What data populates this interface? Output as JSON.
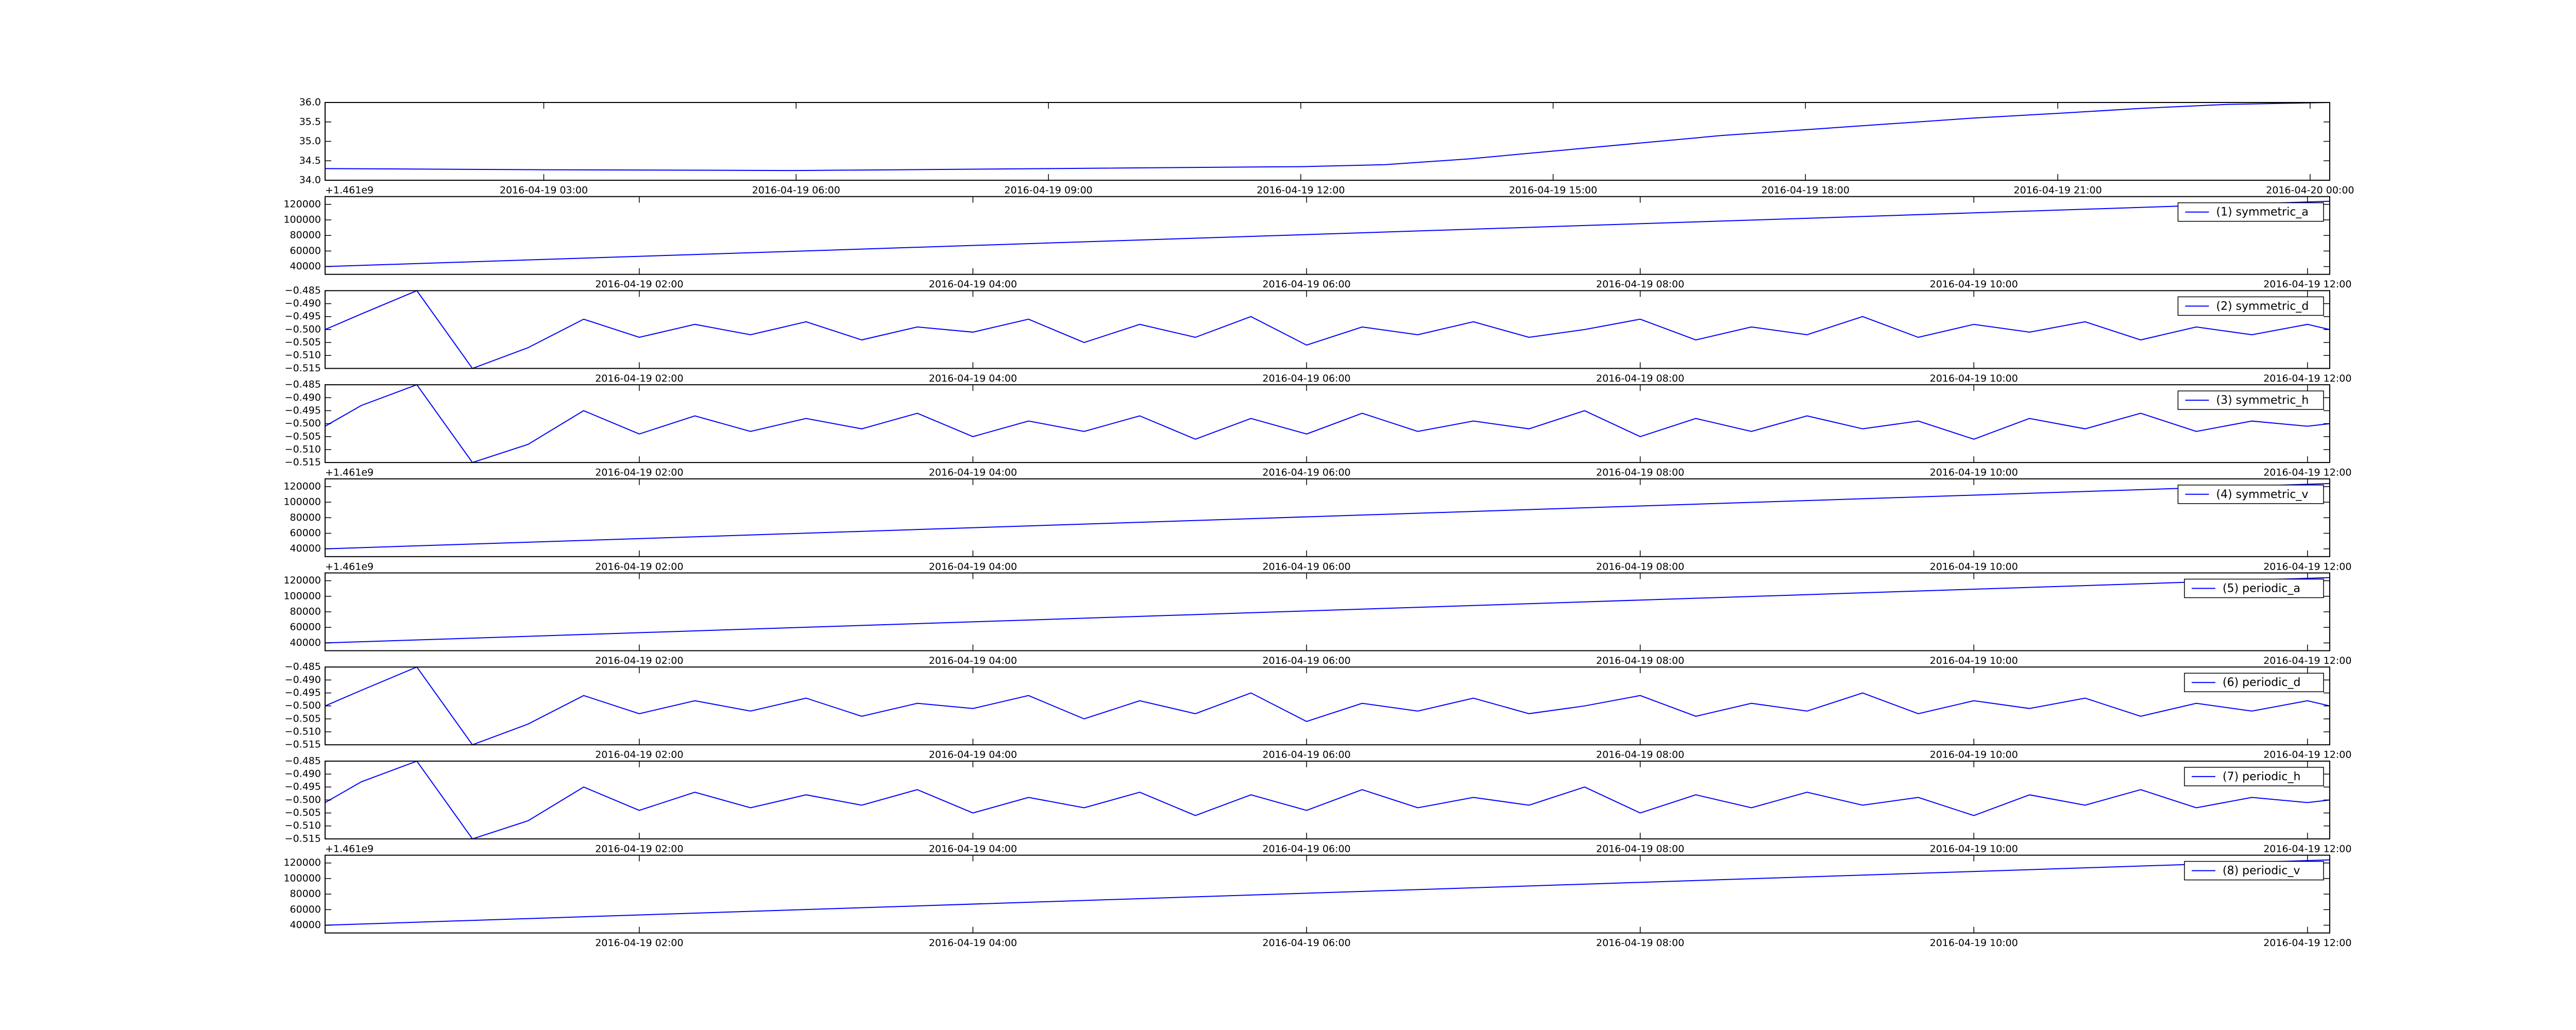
{
  "chart_data": [
    {
      "type": "line",
      "xlim": [
        "2016-04-19 00:24",
        "2016-04-20 00:14"
      ],
      "xticks": [
        "2016-04-19 03:00",
        "2016-04-19 06:00",
        "2016-04-19 09:00",
        "2016-04-19 12:00",
        "2016-04-19 15:00",
        "2016-04-19 18:00",
        "2016-04-19 21:00",
        "2016-04-20 00:00"
      ],
      "ylim": [
        34.0,
        36.0
      ],
      "yticks": [
        {
          "value": 34.0,
          "label": "34.0"
        },
        {
          "value": 34.5,
          "label": "34.5"
        },
        {
          "value": 35.0,
          "label": "35.0"
        },
        {
          "value": 35.5,
          "label": "35.5"
        },
        {
          "value": 36.0,
          "label": "36.0"
        }
      ],
      "offset_text": "+1.461e9",
      "x": [
        "2016-04-19 00:24",
        "2016-04-19 03:00",
        "2016-04-19 06:00",
        "2016-04-19 09:00",
        "2016-04-19 12:00",
        "2016-04-19 13:00",
        "2016-04-19 14:00",
        "2016-04-19 15:00",
        "2016-04-19 16:00",
        "2016-04-19 17:00",
        "2016-04-19 18:00",
        "2016-04-19 19:00",
        "2016-04-19 20:00",
        "2016-04-19 21:00",
        "2016-04-19 22:00",
        "2016-04-19 23:00",
        "2016-04-20 00:14"
      ],
      "series": [
        {
          "color": "#0000ff",
          "values": [
            34.3,
            34.27,
            34.25,
            34.3,
            34.35,
            34.4,
            34.55,
            34.75,
            34.95,
            35.15,
            35.3,
            35.45,
            35.6,
            35.72,
            35.85,
            35.95,
            36.0
          ]
        }
      ]
    },
    {
      "type": "line",
      "xlim": [
        "2016-04-19 00:07",
        "2016-04-19 12:08"
      ],
      "xticks": [
        "2016-04-19 02:00",
        "2016-04-19 04:00",
        "2016-04-19 06:00",
        "2016-04-19 08:00",
        "2016-04-19 10:00",
        "2016-04-19 12:00"
      ],
      "ylim": [
        30000,
        130000
      ],
      "yticks": [
        40000,
        60000,
        80000,
        100000,
        120000
      ],
      "legend": "upper right",
      "x": [
        "2016-04-19 00:07",
        "2016-04-19 12:08"
      ],
      "series": [
        {
          "name": "(1) symmetric_a",
          "color": "#0000ff",
          "values": [
            40000,
            124000
          ]
        }
      ]
    },
    {
      "type": "line",
      "xlim": [
        "2016-04-19 00:07",
        "2016-04-19 12:08"
      ],
      "xticks": [
        "2016-04-19 02:00",
        "2016-04-19 04:00",
        "2016-04-19 06:00",
        "2016-04-19 08:00",
        "2016-04-19 10:00",
        "2016-04-19 12:00"
      ],
      "ylim": [
        -0.515,
        -0.485
      ],
      "yticks": [
        {
          "value": -0.515,
          "label": "−0.515"
        },
        {
          "value": -0.51,
          "label": "−0.510"
        },
        {
          "value": -0.505,
          "label": "−0.505"
        },
        {
          "value": -0.5,
          "label": "−0.500"
        },
        {
          "value": -0.495,
          "label": "−0.495"
        },
        {
          "value": -0.49,
          "label": "−0.490"
        },
        {
          "value": -0.485,
          "label": "−0.485"
        }
      ],
      "legend": "upper right",
      "x": [
        "2016-04-19 00:07",
        "2016-04-19 00:20",
        "2016-04-19 00:40",
        "2016-04-19 01:00",
        "2016-04-19 01:20",
        "2016-04-19 01:40",
        "2016-04-19 02:00",
        "2016-04-19 02:20",
        "2016-04-19 02:40",
        "2016-04-19 03:00",
        "2016-04-19 03:20",
        "2016-04-19 03:40",
        "2016-04-19 04:00",
        "2016-04-19 04:20",
        "2016-04-19 04:40",
        "2016-04-19 05:00",
        "2016-04-19 05:20",
        "2016-04-19 05:40",
        "2016-04-19 06:00",
        "2016-04-19 06:20",
        "2016-04-19 06:40",
        "2016-04-19 07:00",
        "2016-04-19 07:20",
        "2016-04-19 07:40",
        "2016-04-19 08:00",
        "2016-04-19 08:20",
        "2016-04-19 08:40",
        "2016-04-19 09:00",
        "2016-04-19 09:20",
        "2016-04-19 09:40",
        "2016-04-19 10:00",
        "2016-04-19 10:20",
        "2016-04-19 10:40",
        "2016-04-19 11:00",
        "2016-04-19 11:20",
        "2016-04-19 11:40",
        "2016-04-19 12:00",
        "2016-04-19 12:08"
      ],
      "series": [
        {
          "name": "(2) symmetric_d",
          "color": "#0000ff",
          "values": [
            -0.5,
            -0.494,
            -0.485,
            -0.515,
            -0.507,
            -0.496,
            -0.503,
            -0.498,
            -0.502,
            -0.497,
            -0.504,
            -0.499,
            -0.501,
            -0.496,
            -0.505,
            -0.498,
            -0.503,
            -0.495,
            -0.506,
            -0.499,
            -0.502,
            -0.497,
            -0.503,
            -0.5,
            -0.496,
            -0.504,
            -0.499,
            -0.502,
            -0.495,
            -0.503,
            -0.498,
            -0.501,
            -0.497,
            -0.504,
            -0.499,
            -0.502,
            -0.498,
            -0.5
          ]
        }
      ]
    },
    {
      "type": "line",
      "xlim": [
        "2016-04-19 00:07",
        "2016-04-19 12:08"
      ],
      "xticks": [
        "2016-04-19 02:00",
        "2016-04-19 04:00",
        "2016-04-19 06:00",
        "2016-04-19 08:00",
        "2016-04-19 10:00",
        "2016-04-19 12:00"
      ],
      "ylim": [
        -0.515,
        -0.485
      ],
      "yticks": [
        {
          "value": -0.515,
          "label": "−0.515"
        },
        {
          "value": -0.51,
          "label": "−0.510"
        },
        {
          "value": -0.505,
          "label": "−0.505"
        },
        {
          "value": -0.5,
          "label": "−0.500"
        },
        {
          "value": -0.495,
          "label": "−0.495"
        },
        {
          "value": -0.49,
          "label": "−0.490"
        },
        {
          "value": -0.485,
          "label": "−0.485"
        }
      ],
      "legend": "upper right",
      "offset_text": "+1.461e9",
      "x": [
        "2016-04-19 00:07",
        "2016-04-19 00:20",
        "2016-04-19 00:40",
        "2016-04-19 01:00",
        "2016-04-19 01:20",
        "2016-04-19 01:40",
        "2016-04-19 02:00",
        "2016-04-19 02:20",
        "2016-04-19 02:40",
        "2016-04-19 03:00",
        "2016-04-19 03:20",
        "2016-04-19 03:40",
        "2016-04-19 04:00",
        "2016-04-19 04:20",
        "2016-04-19 04:40",
        "2016-04-19 05:00",
        "2016-04-19 05:20",
        "2016-04-19 05:40",
        "2016-04-19 06:00",
        "2016-04-19 06:20",
        "2016-04-19 06:40",
        "2016-04-19 07:00",
        "2016-04-19 07:20",
        "2016-04-19 07:40",
        "2016-04-19 08:00",
        "2016-04-19 08:20",
        "2016-04-19 08:40",
        "2016-04-19 09:00",
        "2016-04-19 09:20",
        "2016-04-19 09:40",
        "2016-04-19 10:00",
        "2016-04-19 10:20",
        "2016-04-19 10:40",
        "2016-04-19 11:00",
        "2016-04-19 11:20",
        "2016-04-19 11:40",
        "2016-04-19 12:00",
        "2016-04-19 12:08"
      ],
      "series": [
        {
          "name": "(3) symmetric_h",
          "color": "#0000ff",
          "values": [
            -0.501,
            -0.493,
            -0.485,
            -0.515,
            -0.508,
            -0.495,
            -0.504,
            -0.497,
            -0.503,
            -0.498,
            -0.502,
            -0.496,
            -0.505,
            -0.499,
            -0.503,
            -0.497,
            -0.506,
            -0.498,
            -0.504,
            -0.496,
            -0.503,
            -0.499,
            -0.502,
            -0.495,
            -0.505,
            -0.498,
            -0.503,
            -0.497,
            -0.502,
            -0.499,
            -0.506,
            -0.498,
            -0.502,
            -0.496,
            -0.503,
            -0.499,
            -0.501,
            -0.5
          ]
        }
      ]
    },
    {
      "type": "line",
      "xlim": [
        "2016-04-19 00:07",
        "2016-04-19 12:08"
      ],
      "xticks": [
        "2016-04-19 02:00",
        "2016-04-19 04:00",
        "2016-04-19 06:00",
        "2016-04-19 08:00",
        "2016-04-19 10:00",
        "2016-04-19 12:00"
      ],
      "ylim": [
        30000,
        130000
      ],
      "yticks": [
        40000,
        60000,
        80000,
        100000,
        120000
      ],
      "legend": "upper right",
      "offset_text": "+1.461e9",
      "x": [
        "2016-04-19 00:07",
        "2016-04-19 12:08"
      ],
      "series": [
        {
          "name": "(4) symmetric_v",
          "color": "#0000ff",
          "values": [
            40000,
            124000
          ]
        }
      ]
    },
    {
      "type": "line",
      "xlim": [
        "2016-04-19 00:07",
        "2016-04-19 12:08"
      ],
      "xticks": [
        "2016-04-19 02:00",
        "2016-04-19 04:00",
        "2016-04-19 06:00",
        "2016-04-19 08:00",
        "2016-04-19 10:00",
        "2016-04-19 12:00"
      ],
      "ylim": [
        30000,
        130000
      ],
      "yticks": [
        40000,
        60000,
        80000,
        100000,
        120000
      ],
      "legend": "upper right",
      "x": [
        "2016-04-19 00:07",
        "2016-04-19 12:08"
      ],
      "series": [
        {
          "name": "(5) periodic_a",
          "color": "#0000ff",
          "values": [
            40000,
            124000
          ]
        }
      ]
    },
    {
      "type": "line",
      "xlim": [
        "2016-04-19 00:07",
        "2016-04-19 12:08"
      ],
      "xticks": [
        "2016-04-19 02:00",
        "2016-04-19 04:00",
        "2016-04-19 06:00",
        "2016-04-19 08:00",
        "2016-04-19 10:00",
        "2016-04-19 12:00"
      ],
      "ylim": [
        -0.515,
        -0.485
      ],
      "yticks": [
        {
          "value": -0.515,
          "label": "−0.515"
        },
        {
          "value": -0.51,
          "label": "−0.510"
        },
        {
          "value": -0.505,
          "label": "−0.505"
        },
        {
          "value": -0.5,
          "label": "−0.500"
        },
        {
          "value": -0.495,
          "label": "−0.495"
        },
        {
          "value": -0.49,
          "label": "−0.490"
        },
        {
          "value": -0.485,
          "label": "−0.485"
        }
      ],
      "legend": "upper right",
      "x": [
        "2016-04-19 00:07",
        "2016-04-19 00:20",
        "2016-04-19 00:40",
        "2016-04-19 01:00",
        "2016-04-19 01:20",
        "2016-04-19 01:40",
        "2016-04-19 02:00",
        "2016-04-19 02:20",
        "2016-04-19 02:40",
        "2016-04-19 03:00",
        "2016-04-19 03:20",
        "2016-04-19 03:40",
        "2016-04-19 04:00",
        "2016-04-19 04:20",
        "2016-04-19 04:40",
        "2016-04-19 05:00",
        "2016-04-19 05:20",
        "2016-04-19 05:40",
        "2016-04-19 06:00",
        "2016-04-19 06:20",
        "2016-04-19 06:40",
        "2016-04-19 07:00",
        "2016-04-19 07:20",
        "2016-04-19 07:40",
        "2016-04-19 08:00",
        "2016-04-19 08:20",
        "2016-04-19 08:40",
        "2016-04-19 09:00",
        "2016-04-19 09:20",
        "2016-04-19 09:40",
        "2016-04-19 10:00",
        "2016-04-19 10:20",
        "2016-04-19 10:40",
        "2016-04-19 11:00",
        "2016-04-19 11:20",
        "2016-04-19 11:40",
        "2016-04-19 12:00",
        "2016-04-19 12:08"
      ],
      "series": [
        {
          "name": "(6) periodic_d",
          "color": "#0000ff",
          "values": [
            -0.5,
            -0.494,
            -0.485,
            -0.515,
            -0.507,
            -0.496,
            -0.503,
            -0.498,
            -0.502,
            -0.497,
            -0.504,
            -0.499,
            -0.501,
            -0.496,
            -0.505,
            -0.498,
            -0.503,
            -0.495,
            -0.506,
            -0.499,
            -0.502,
            -0.497,
            -0.503,
            -0.5,
            -0.496,
            -0.504,
            -0.499,
            -0.502,
            -0.495,
            -0.503,
            -0.498,
            -0.501,
            -0.497,
            -0.504,
            -0.499,
            -0.502,
            -0.498,
            -0.5
          ]
        }
      ]
    },
    {
      "type": "line",
      "xlim": [
        "2016-04-19 00:07",
        "2016-04-19 12:08"
      ],
      "xticks": [
        "2016-04-19 02:00",
        "2016-04-19 04:00",
        "2016-04-19 06:00",
        "2016-04-19 08:00",
        "2016-04-19 10:00",
        "2016-04-19 12:00"
      ],
      "ylim": [
        -0.515,
        -0.485
      ],
      "yticks": [
        {
          "value": -0.515,
          "label": "−0.515"
        },
        {
          "value": -0.51,
          "label": "−0.510"
        },
        {
          "value": -0.505,
          "label": "−0.505"
        },
        {
          "value": -0.5,
          "label": "−0.500"
        },
        {
          "value": -0.495,
          "label": "−0.495"
        },
        {
          "value": -0.49,
          "label": "−0.490"
        },
        {
          "value": -0.485,
          "label": "−0.485"
        }
      ],
      "legend": "upper right",
      "offset_text": "+1.461e9",
      "x": [
        "2016-04-19 00:07",
        "2016-04-19 00:20",
        "2016-04-19 00:40",
        "2016-04-19 01:00",
        "2016-04-19 01:20",
        "2016-04-19 01:40",
        "2016-04-19 02:00",
        "2016-04-19 02:20",
        "2016-04-19 02:40",
        "2016-04-19 03:00",
        "2016-04-19 03:20",
        "2016-04-19 03:40",
        "2016-04-19 04:00",
        "2016-04-19 04:20",
        "2016-04-19 04:40",
        "2016-04-19 05:00",
        "2016-04-19 05:20",
        "2016-04-19 05:40",
        "2016-04-19 06:00",
        "2016-04-19 06:20",
        "2016-04-19 06:40",
        "2016-04-19 07:00",
        "2016-04-19 07:20",
        "2016-04-19 07:40",
        "2016-04-19 08:00",
        "2016-04-19 08:20",
        "2016-04-19 08:40",
        "2016-04-19 09:00",
        "2016-04-19 09:20",
        "2016-04-19 09:40",
        "2016-04-19 10:00",
        "2016-04-19 10:20",
        "2016-04-19 10:40",
        "2016-04-19 11:00",
        "2016-04-19 11:20",
        "2016-04-19 11:40",
        "2016-04-19 12:00",
        "2016-04-19 12:08"
      ],
      "series": [
        {
          "name": "(7) periodic_h",
          "color": "#0000ff",
          "values": [
            -0.501,
            -0.493,
            -0.485,
            -0.515,
            -0.508,
            -0.495,
            -0.504,
            -0.497,
            -0.503,
            -0.498,
            -0.502,
            -0.496,
            -0.505,
            -0.499,
            -0.503,
            -0.497,
            -0.506,
            -0.498,
            -0.504,
            -0.496,
            -0.503,
            -0.499,
            -0.502,
            -0.495,
            -0.505,
            -0.498,
            -0.503,
            -0.497,
            -0.502,
            -0.499,
            -0.506,
            -0.498,
            -0.502,
            -0.496,
            -0.503,
            -0.499,
            -0.501,
            -0.5
          ]
        }
      ]
    },
    {
      "type": "line",
      "xlim": [
        "2016-04-19 00:07",
        "2016-04-19 12:08"
      ],
      "xticks": [
        "2016-04-19 02:00",
        "2016-04-19 04:00",
        "2016-04-19 06:00",
        "2016-04-19 08:00",
        "2016-04-19 10:00",
        "2016-04-19 12:00"
      ],
      "ylim": [
        30000,
        130000
      ],
      "yticks": [
        40000,
        60000,
        80000,
        100000,
        120000
      ],
      "legend": "upper right",
      "x": [
        "2016-04-19 00:07",
        "2016-04-19 12:08"
      ],
      "series": [
        {
          "name": "(8) periodic_v",
          "color": "#0000ff",
          "values": [
            40000,
            124000
          ]
        }
      ]
    }
  ]
}
